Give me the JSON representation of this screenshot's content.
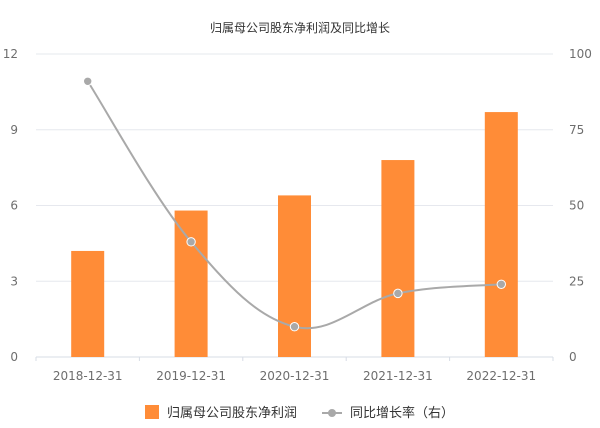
{
  "chart_data": {
    "type": "bar+line",
    "title": "归属母公司股东净利润及同比增长",
    "categories": [
      "2018-12-31",
      "2019-12-31",
      "2020-12-31",
      "2021-12-31",
      "2022-12-31"
    ],
    "series": [
      {
        "name": "归属母公司股东净利润",
        "type": "bar",
        "axis": "left",
        "values": [
          4.2,
          5.8,
          6.4,
          7.8,
          9.7
        ],
        "color": "#ff8c37"
      },
      {
        "name": "同比增长率（右）",
        "type": "line",
        "axis": "right",
        "values": [
          91,
          38,
          10,
          21,
          24
        ],
        "color": "#a9a9a9"
      }
    ],
    "y_left": {
      "range": [
        0,
        12
      ],
      "ticks": [
        "0",
        "3",
        "6",
        "9",
        "12"
      ]
    },
    "y_right": {
      "range": [
        0,
        100
      ],
      "ticks": [
        "0",
        "25",
        "50",
        "75",
        "100"
      ]
    },
    "grid": true,
    "legend_position": "bottom"
  }
}
